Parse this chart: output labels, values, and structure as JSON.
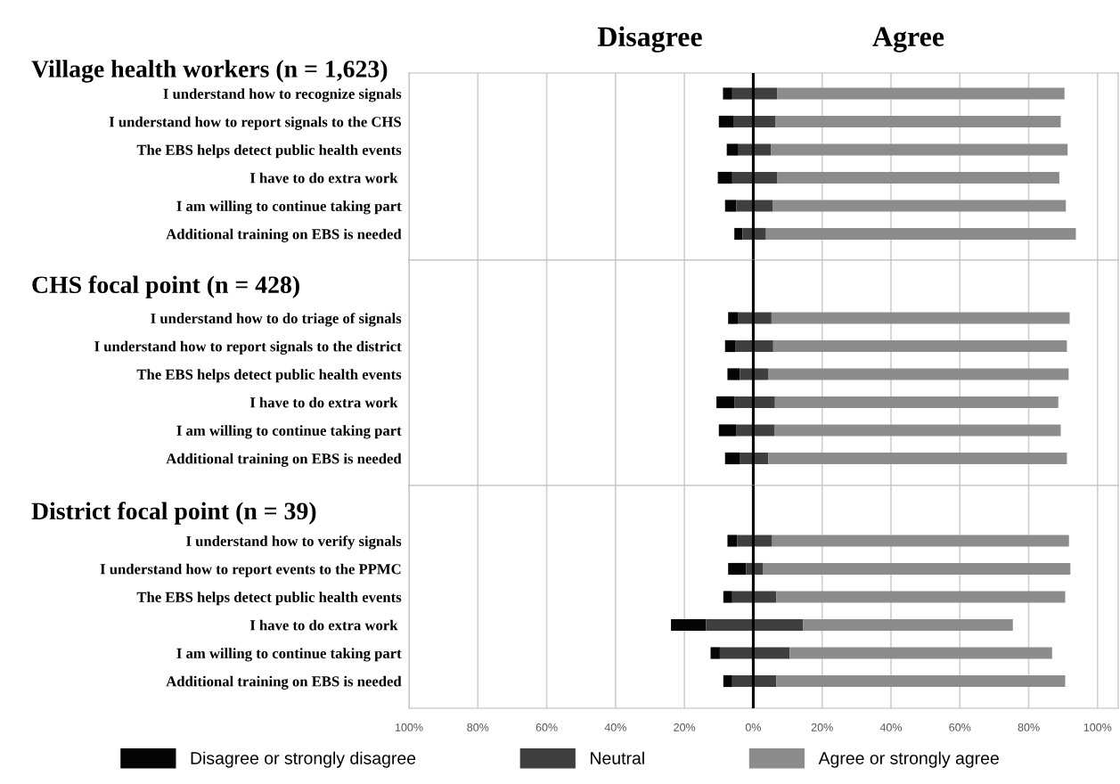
{
  "chart_data": [
    {
      "type": "bar",
      "orientation": "horizontal",
      "title": "Village health workers (n = 1,623)",
      "annotations": [
        "Disagree",
        "Agree"
      ],
      "categories": [
        "I understand how to recognize signals",
        "I understand how to report signals to the CHS",
        "The EBS helps detect public health events",
        "I have to do extra work ",
        "I am willing to continue taking part",
        "Additional training on EBS is needed"
      ],
      "series": [
        {
          "color": "#050505",
          "base": [
            -8.8,
            -10.0,
            -7.7,
            -10.3,
            -8.2,
            -5.5
          ],
          "values": [
            2.7,
            4.2,
            3.4,
            4.2,
            3.3,
            2.4
          ]
        },
        {
          "color": "#3f3f3f",
          "base": [
            -6.1,
            -5.8,
            -4.3,
            -6.1,
            -4.9,
            -3.1
          ],
          "values": [
            13.1,
            12.3,
            9.4,
            13.0,
            10.5,
            6.8
          ]
        },
        {
          "color": "#8c8c8c",
          "base": [
            7.0,
            6.5,
            5.1,
            6.9,
            5.6,
            3.7
          ],
          "values": [
            83.4,
            82.8,
            86.2,
            82.0,
            85.2,
            90.0
          ]
        }
      ],
      "xlim": [
        -100,
        106
      ],
      "xticks": [
        {
          "value": -100,
          "label": null
        },
        {
          "value": -80,
          "label": null
        },
        {
          "value": -60,
          "label": null
        },
        {
          "value": -40,
          "label": null
        },
        {
          "value": -20,
          "label": null
        },
        {
          "value": 0,
          "label": null
        },
        {
          "value": 20,
          "label": null
        },
        {
          "value": 40,
          "label": null
        },
        {
          "value": 60,
          "label": null
        },
        {
          "value": 80,
          "label": null
        },
        {
          "value": 100,
          "label": null
        }
      ],
      "tick_labels": "y",
      "grid": "x",
      "ref_lines": [
        {
          "axis": "x",
          "value": 0,
          "color": "#000000"
        }
      ]
    },
    {
      "type": "bar",
      "orientation": "horizontal",
      "title": "CHS focal point (n = 428)",
      "categories": [
        "I understand how to do triage of signals",
        "I understand how to report signals to the district",
        "The EBS helps detect public health events",
        "I have to do extra work ",
        "I am willing to continue taking part",
        "Additional training on EBS is needed"
      ],
      "series": [
        {
          "color": "#050505",
          "base": [
            -7.3,
            -8.2,
            -7.5,
            -10.7,
            -10.0,
            -8.2
          ],
          "values": [
            2.8,
            3.1,
            3.6,
            5.2,
            5.0,
            4.4
          ]
        },
        {
          "color": "#3f3f3f",
          "base": [
            -4.5,
            -5.1,
            -3.9,
            -5.5,
            -5.0,
            -3.8
          ],
          "values": [
            9.8,
            10.9,
            8.2,
            11.8,
            11.1,
            8.2
          ]
        },
        {
          "color": "#8c8c8c",
          "base": [
            5.3,
            5.8,
            4.3,
            6.3,
            6.1,
            4.4
          ],
          "values": [
            86.6,
            85.3,
            87.3,
            82.3,
            83.2,
            86.7
          ]
        }
      ],
      "xlim": [
        -100,
        106
      ],
      "xticks": [
        {
          "value": -100,
          "label": null
        },
        {
          "value": -80,
          "label": null
        },
        {
          "value": -60,
          "label": null
        },
        {
          "value": -40,
          "label": null
        },
        {
          "value": -20,
          "label": null
        },
        {
          "value": 0,
          "label": null
        },
        {
          "value": 20,
          "label": null
        },
        {
          "value": 40,
          "label": null
        },
        {
          "value": 60,
          "label": null
        },
        {
          "value": 80,
          "label": null
        },
        {
          "value": 100,
          "label": null
        }
      ],
      "tick_labels": "y",
      "grid": "x",
      "ref_lines": [
        {
          "axis": "x",
          "value": 0,
          "color": "#000000"
        }
      ]
    },
    {
      "type": "bar",
      "orientation": "horizontal",
      "title": "District focal point (n = 39)",
      "categories": [
        "I understand how to verify signals",
        "I understand how to report events to the PPMC",
        "The EBS helps detect public health events",
        "I have to do extra work ",
        "I am willing to continue taking part",
        "Additional training on EBS is needed"
      ],
      "series": [
        {
          "name": "Disagree or strongly disagree",
          "color": "#050505",
          "base": [
            -7.5,
            -7.3,
            -8.7,
            -23.9,
            -12.4,
            -8.7
          ],
          "values": [
            2.8,
            5.2,
            2.6,
            10.2,
            2.7,
            2.6
          ]
        },
        {
          "name": "Neutral",
          "color": "#3f3f3f",
          "base": [
            -4.7,
            -2.1,
            -6.1,
            -13.7,
            -9.7,
            -6.1
          ],
          "values": [
            10.2,
            5.0,
            12.8,
            28.2,
            20.3,
            12.8
          ]
        },
        {
          "name": "Agree or strongly agree",
          "color": "#8c8c8c",
          "base": [
            5.5,
            2.9,
            6.7,
            14.5,
            10.6,
            6.7
          ],
          "values": [
            86.2,
            89.2,
            83.9,
            60.9,
            76.2,
            83.9
          ]
        }
      ],
      "xlim": [
        -100,
        106
      ],
      "xticks": [
        {
          "value": -100,
          "label": "100%"
        },
        {
          "value": -80,
          "label": "80%"
        },
        {
          "value": -60,
          "label": "60%"
        },
        {
          "value": -40,
          "label": "40%"
        },
        {
          "value": -20,
          "label": "20%"
        },
        {
          "value": 0,
          "label": "0%"
        },
        {
          "value": 20,
          "label": "20%"
        },
        {
          "value": 40,
          "label": "40%"
        },
        {
          "value": 60,
          "label": "60%"
        },
        {
          "value": 80,
          "label": "80%"
        },
        {
          "value": 100,
          "label": "100%"
        }
      ],
      "grid": "x",
      "legend": "bottom",
      "ref_lines": [
        {
          "axis": "x",
          "value": 0,
          "color": "#000000"
        }
      ]
    }
  ]
}
